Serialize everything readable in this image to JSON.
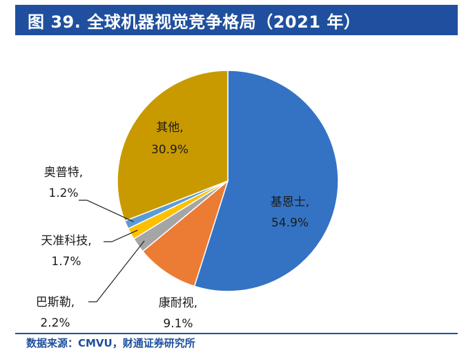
{
  "header": {
    "title": "图 39.  全球机器视觉竞争格局（2021 年）"
  },
  "footer": {
    "source": "数据来源：CMVU，财通证券研究所"
  },
  "chart_data": {
    "type": "pie",
    "title": "全球机器视觉竞争格局（2021 年）",
    "start_angle_deg": 0,
    "direction": "clockwise",
    "slices": [
      {
        "name": "基恩士",
        "value": 54.9,
        "label": "54.9%",
        "color": "#3473c4"
      },
      {
        "name": "康耐视",
        "value": 9.1,
        "label": "9.1%",
        "color": "#ec7b33"
      },
      {
        "name": "巴斯勒",
        "value": 2.2,
        "label": "2.2%",
        "color": "#a5a5a5"
      },
      {
        "name": "天准科技",
        "value": 1.7,
        "label": "1.7%",
        "color": "#fec000"
      },
      {
        "name": "奥普特",
        "value": 1.2,
        "label": "1.2%",
        "color": "#5b9bd5"
      },
      {
        "name": "其他",
        "value": 30.9,
        "label": "30.9%",
        "color": "#c99a00"
      }
    ],
    "legend": "none"
  }
}
